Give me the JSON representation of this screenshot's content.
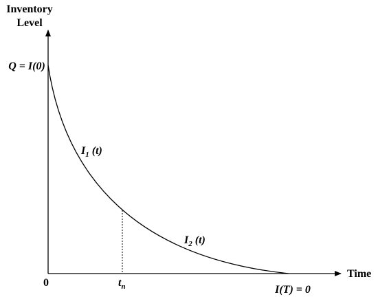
{
  "axes": {
    "y_label": [
      "Inventory",
      "Level"
    ],
    "x_label": "Time",
    "origin": "0"
  },
  "labels": {
    "q": "Q = I(0)",
    "i1": {
      "main": "I",
      "sub": "1",
      "rest": " (t)"
    },
    "i2": {
      "main": "I",
      "sub": "2",
      "rest": " (t)"
    },
    "tn": {
      "main": "t",
      "sub": "n"
    },
    "end": "I(T) = 0"
  }
}
